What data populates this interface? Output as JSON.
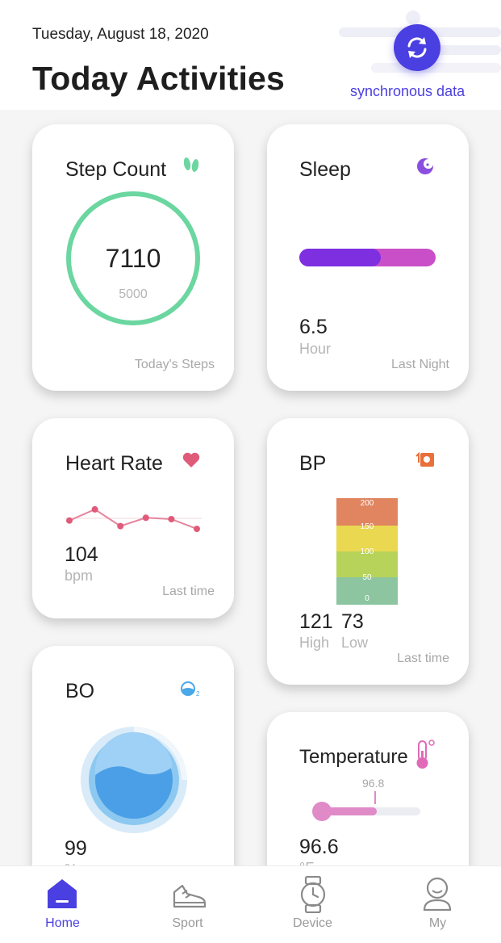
{
  "header": {
    "date": "Tuesday, August 18, 2020",
    "title": "Today Activities",
    "sync_label": "synchronous data",
    "sync_icon": "sync-icon",
    "accent": "#4a3fe0"
  },
  "cards": {
    "step": {
      "title": "Step Count",
      "value": "7110",
      "goal": "5000",
      "footer": "Today's Steps",
      "icon": "footprints-icon",
      "color": "#6bd6a0"
    },
    "sleep": {
      "title": "Sleep",
      "value": "6.5",
      "unit": "Hour",
      "footer": "Last Night",
      "icon": "moon-icon",
      "deep_fraction": 0.6
    },
    "heart": {
      "title": "Heart Rate",
      "value": "104",
      "unit": "bpm",
      "footer": "Last time",
      "icon": "heart-icon",
      "trend": [
        104,
        112,
        100,
        106,
        105,
        98
      ]
    },
    "bp": {
      "title": "BP",
      "high": "121",
      "low": "73",
      "high_label": "High",
      "low_label": "Low",
      "footer": "Last time",
      "icon": "bp-monitor-icon",
      "scale": [
        "200",
        "150",
        "100",
        "50",
        "0"
      ]
    },
    "bo": {
      "title": "BO",
      "value": "99",
      "unit": "%",
      "icon": "o2-icon"
    },
    "temp": {
      "title": "Temperature",
      "value": "96.6",
      "unit": "°F",
      "marker": "96.8",
      "icon": "thermometer-icon"
    }
  },
  "nav": {
    "items": [
      {
        "label": "Home",
        "icon": "home-icon"
      },
      {
        "label": "Sport",
        "icon": "shoe-icon"
      },
      {
        "label": "Device",
        "icon": "watch-icon"
      },
      {
        "label": "My",
        "icon": "user-icon"
      }
    ]
  }
}
